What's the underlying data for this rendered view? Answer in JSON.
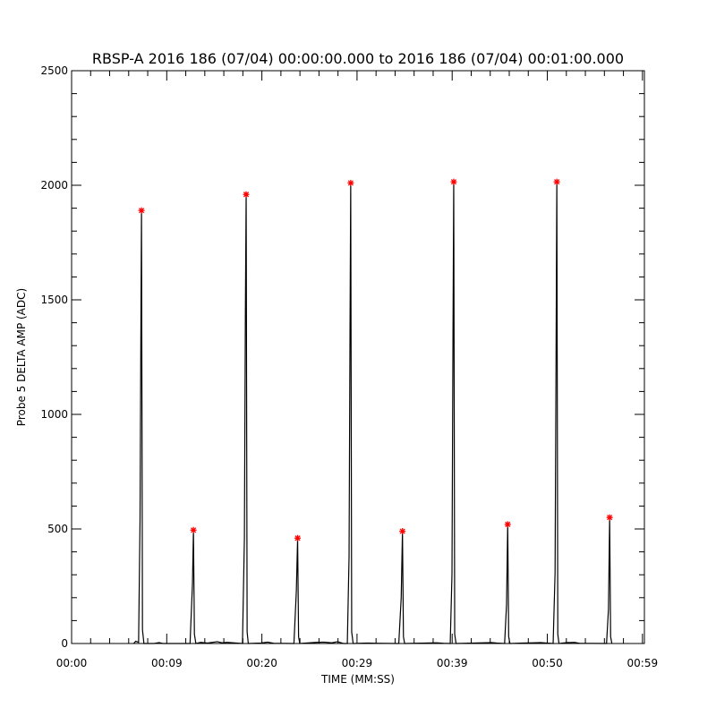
{
  "chart_data": {
    "type": "line",
    "title": "RBSP-A 2016 186 (07/04) 00:00:00.000 to 2016 186 (07/04) 00:01:00.000",
    "xlabel": "TIME (MM:SS)",
    "ylabel": "Probe 5 DELTA AMP (ADC)",
    "xlim": [
      0,
      59
    ],
    "ylim": [
      0,
      2500
    ],
    "x_ticks": [
      {
        "value": 0,
        "label": "00:00"
      },
      {
        "value": 9.8,
        "label": "00:09"
      },
      {
        "value": 19.6,
        "label": "00:20"
      },
      {
        "value": 29.4,
        "label": "00:29"
      },
      {
        "value": 39.2,
        "label": "00:39"
      },
      {
        "value": 49.0,
        "label": "00:50"
      },
      {
        "value": 58.8,
        "label": "00:59"
      }
    ],
    "y_ticks": [
      {
        "value": 0,
        "label": "0"
      },
      {
        "value": 500,
        "label": "500"
      },
      {
        "value": 1000,
        "label": "1000"
      },
      {
        "value": 1500,
        "label": "1500"
      },
      {
        "value": 2000,
        "label": "2000"
      },
      {
        "value": 2500,
        "label": "2500"
      }
    ],
    "y_minor_step": 100,
    "x_minor_step": 1.96,
    "series": [
      {
        "values": [
          {
            "x": 6.4,
            "y": 0
          },
          {
            "x": 6.6,
            "y": 10
          },
          {
            "x": 6.9,
            "y": 5
          },
          {
            "x": 7.05,
            "y": 540
          },
          {
            "x": 7.15,
            "y": 1480
          },
          {
            "x": 7.2,
            "y": 1890
          },
          {
            "x": 7.3,
            "y": 60
          },
          {
            "x": 7.45,
            "y": 0
          },
          {
            "x": 8.5,
            "y": 0
          },
          {
            "x": 9.0,
            "y": 4
          },
          {
            "x": 9.4,
            "y": 0
          },
          {
            "x": 12.2,
            "y": 0
          },
          {
            "x": 12.45,
            "y": 260
          },
          {
            "x": 12.55,
            "y": 495
          },
          {
            "x": 12.65,
            "y": 40
          },
          {
            "x": 12.8,
            "y": 0
          },
          {
            "x": 13.3,
            "y": 5
          },
          {
            "x": 14.0,
            "y": 2
          },
          {
            "x": 15.0,
            "y": 8
          },
          {
            "x": 15.5,
            "y": 3
          },
          {
            "x": 16.0,
            "y": 5
          },
          {
            "x": 17.6,
            "y": 0
          },
          {
            "x": 17.8,
            "y": 460
          },
          {
            "x": 17.9,
            "y": 1440
          },
          {
            "x": 17.98,
            "y": 1960
          },
          {
            "x": 18.08,
            "y": 50
          },
          {
            "x": 18.2,
            "y": 0
          },
          {
            "x": 19.5,
            "y": 2
          },
          {
            "x": 20.2,
            "y": 6
          },
          {
            "x": 20.8,
            "y": 1
          },
          {
            "x": 22.9,
            "y": 0
          },
          {
            "x": 23.15,
            "y": 230
          },
          {
            "x": 23.28,
            "y": 460
          },
          {
            "x": 23.38,
            "y": 30
          },
          {
            "x": 23.5,
            "y": 0
          },
          {
            "x": 25.2,
            "y": 5
          },
          {
            "x": 26.0,
            "y": 6
          },
          {
            "x": 26.8,
            "y": 3
          },
          {
            "x": 27.4,
            "y": 8
          },
          {
            "x": 28.0,
            "y": 0
          },
          {
            "x": 28.4,
            "y": 0
          },
          {
            "x": 28.58,
            "y": 380
          },
          {
            "x": 28.68,
            "y": 1390
          },
          {
            "x": 28.75,
            "y": 2010
          },
          {
            "x": 28.85,
            "y": 50
          },
          {
            "x": 29.0,
            "y": 0
          },
          {
            "x": 30.5,
            "y": 2
          },
          {
            "x": 31.3,
            "y": 1
          },
          {
            "x": 33.7,
            "y": 0
          },
          {
            "x": 33.95,
            "y": 200
          },
          {
            "x": 34.08,
            "y": 490
          },
          {
            "x": 34.18,
            "y": 30
          },
          {
            "x": 34.3,
            "y": 0
          },
          {
            "x": 37.6,
            "y": 3
          },
          {
            "x": 38.3,
            "y": 1
          },
          {
            "x": 39.0,
            "y": 0
          },
          {
            "x": 39.18,
            "y": 300
          },
          {
            "x": 39.28,
            "y": 1310
          },
          {
            "x": 39.36,
            "y": 2015
          },
          {
            "x": 39.46,
            "y": 40
          },
          {
            "x": 39.6,
            "y": 0
          },
          {
            "x": 43.3,
            "y": 4
          },
          {
            "x": 43.8,
            "y": 2
          },
          {
            "x": 44.6,
            "y": 0
          },
          {
            "x": 44.8,
            "y": 170
          },
          {
            "x": 44.92,
            "y": 520
          },
          {
            "x": 45.02,
            "y": 30
          },
          {
            "x": 45.15,
            "y": 0
          },
          {
            "x": 46.5,
            "y": 2
          },
          {
            "x": 47.6,
            "y": 3
          },
          {
            "x": 48.3,
            "y": 4
          },
          {
            "x": 49.6,
            "y": 0
          },
          {
            "x": 49.8,
            "y": 310
          },
          {
            "x": 49.9,
            "y": 1250
          },
          {
            "x": 49.98,
            "y": 2015
          },
          {
            "x": 50.08,
            "y": 40
          },
          {
            "x": 50.2,
            "y": 0
          },
          {
            "x": 51.0,
            "y": 4
          },
          {
            "x": 51.8,
            "y": 5
          },
          {
            "x": 52.3,
            "y": 1
          },
          {
            "x": 55.1,
            "y": 0
          },
          {
            "x": 55.3,
            "y": 150
          },
          {
            "x": 55.42,
            "y": 550
          },
          {
            "x": 55.52,
            "y": 30
          },
          {
            "x": 55.65,
            "y": 0
          }
        ],
        "color": "#000000"
      }
    ],
    "peaks": [
      {
        "x": 7.2,
        "y": 1890
      },
      {
        "x": 12.55,
        "y": 495
      },
      {
        "x": 17.98,
        "y": 1960
      },
      {
        "x": 23.28,
        "y": 460
      },
      {
        "x": 28.75,
        "y": 2010
      },
      {
        "x": 34.08,
        "y": 490
      },
      {
        "x": 39.36,
        "y": 2015
      },
      {
        "x": 44.92,
        "y": 520
      },
      {
        "x": 49.98,
        "y": 2015
      },
      {
        "x": 55.42,
        "y": 550
      }
    ],
    "peak_color": "#ff0000",
    "grid": false
  }
}
